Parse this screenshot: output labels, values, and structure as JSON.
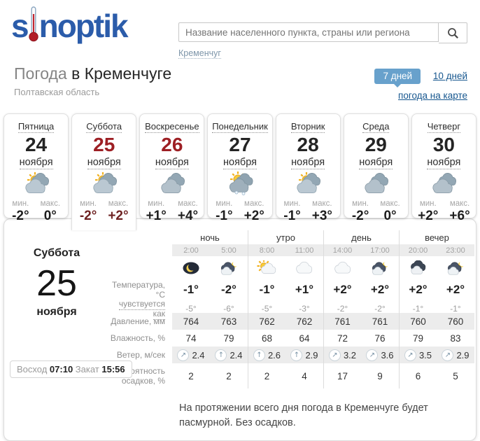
{
  "logo": {
    "pre": "s",
    "post": "noptik"
  },
  "search": {
    "placeholder": "Название населенного пункта, страны или региона",
    "button_icon": "magnifier-icon",
    "city_link": "Кременчуг"
  },
  "page": {
    "title_gray": "Погода",
    "title_dark": "в Кременчуге",
    "region": "Полтавская область"
  },
  "controls": {
    "seven_days": "7 дней",
    "ten_days": "10 дней",
    "map_link": "погода на карте"
  },
  "labels": {
    "min": "мин.",
    "max": "макс."
  },
  "cards": [
    {
      "day": "Пятница",
      "date": "24",
      "month": "ноября",
      "icon": "sun-clouds",
      "min": "-2°",
      "max": "0°",
      "weekend": false,
      "active": false
    },
    {
      "day": "Суббота",
      "date": "25",
      "month": "ноября",
      "icon": "sun-clouds",
      "min": "-2°",
      "max": "+2°",
      "weekend": true,
      "active": true
    },
    {
      "day": "Воскресенье",
      "date": "26",
      "month": "ноября",
      "icon": "clouds",
      "min": "+1°",
      "max": "+4°",
      "weekend": true,
      "active": false
    },
    {
      "day": "Понедельник",
      "date": "27",
      "month": "ноября",
      "icon": "sun-clouds-snow",
      "min": "-1°",
      "max": "+2°",
      "weekend": false,
      "active": false
    },
    {
      "day": "Вторник",
      "date": "28",
      "month": "ноября",
      "icon": "sun-clouds",
      "min": "-1°",
      "max": "+3°",
      "weekend": false,
      "active": false
    },
    {
      "day": "Среда",
      "date": "29",
      "month": "ноября",
      "icon": "clouds",
      "min": "-2°",
      "max": "0°",
      "weekend": false,
      "active": false
    },
    {
      "day": "Четверг",
      "date": "30",
      "month": "ноября",
      "icon": "clouds",
      "min": "+2°",
      "max": "+6°",
      "weekend": false,
      "active": false
    }
  ],
  "detail": {
    "day_name": "Суббота",
    "date": "25",
    "month": "ноября",
    "sunrise_label": "Восход",
    "sunrise_time": "07:10",
    "sunset_label": "Закат",
    "sunset_time": "15:56",
    "periods": [
      "ночь",
      "утро",
      "день",
      "вечер"
    ],
    "times": [
      "2:00",
      "5:00",
      "8:00",
      "11:00",
      "14:00",
      "17:00",
      "20:00",
      "23:00"
    ],
    "hour_icons": [
      "moon",
      "cloud-moon",
      "sun-cloud",
      "cloud-light",
      "cloud-light",
      "cloud-moon",
      "cloud-dark",
      "cloud-moon"
    ],
    "rows": [
      {
        "key": "temperature",
        "label": "Температура, °C",
        "type": "temp",
        "underlined": false,
        "shaded": false,
        "values": [
          "-1°",
          "-2°",
          "-1°",
          "+1°",
          "+2°",
          "+2°",
          "+2°",
          "+2°"
        ]
      },
      {
        "key": "feels_like",
        "label": "чувствуется как",
        "type": "feels",
        "underlined": true,
        "shaded": false,
        "values": [
          "-5°",
          "-6°",
          "-5°",
          "-3°",
          "-2°",
          "-2°",
          "-1°",
          "-1°"
        ]
      },
      {
        "key": "pressure",
        "label": "Давление, мм",
        "type": "plain",
        "underlined": false,
        "shaded": true,
        "values": [
          "764",
          "763",
          "762",
          "762",
          "761",
          "761",
          "760",
          "760"
        ]
      },
      {
        "key": "humidity",
        "label": "Влажность, %",
        "type": "plain",
        "underlined": false,
        "shaded": false,
        "values": [
          "74",
          "79",
          "68",
          "64",
          "72",
          "76",
          "79",
          "83"
        ]
      },
      {
        "key": "wind",
        "label": "Ветер, м/сек",
        "type": "wind",
        "underlined": false,
        "shaded": true,
        "values": [
          {
            "dir": "ne",
            "speed": "2.4"
          },
          {
            "dir": "n",
            "speed": "2.4"
          },
          {
            "dir": "n",
            "speed": "2.6"
          },
          {
            "dir": "n",
            "speed": "2.9"
          },
          {
            "dir": "ne",
            "speed": "3.2"
          },
          {
            "dir": "ne",
            "speed": "3.6"
          },
          {
            "dir": "ne",
            "speed": "3.5"
          },
          {
            "dir": "ne",
            "speed": "2.9"
          }
        ]
      },
      {
        "key": "precip_prob",
        "label": "Вероятность осадков, %",
        "type": "precip",
        "underlined": false,
        "shaded": false,
        "values": [
          "2",
          "2",
          "2",
          "4",
          "17",
          "9",
          "6",
          "5"
        ]
      }
    ],
    "summary": "На протяжении всего дня погода в Кременчуге будет пасмурной. Без осадков."
  },
  "colors": {
    "brand_blue": "#2b5caa",
    "thermometer_red": "#c12630",
    "date_red": "#9d1f24",
    "button_blue": "#68a1cc",
    "link_blue": "#17578f",
    "stripe_gray": "#ececec"
  }
}
